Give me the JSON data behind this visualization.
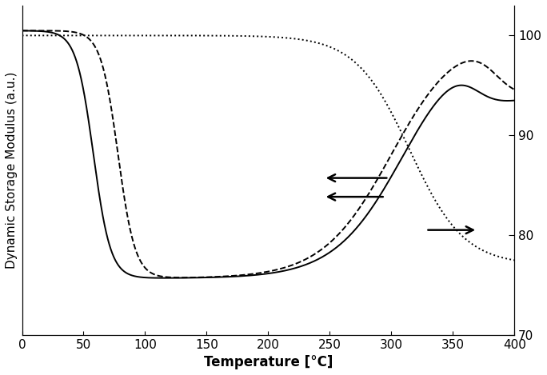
{
  "title": "",
  "xlabel": "Temperature [°C]",
  "ylabel_left": "Dynamic Storage Modulus (a.u.)",
  "ylabel_right": "",
  "xlim": [
    0,
    400
  ],
  "ylim_left": [
    0,
    1.05
  ],
  "ylim_right": [
    70,
    103
  ],
  "xticks": [
    0,
    50,
    100,
    150,
    200,
    250,
    300,
    350,
    400
  ],
  "yticks_right": [
    70,
    80,
    90,
    100
  ],
  "background_color": "#ffffff"
}
